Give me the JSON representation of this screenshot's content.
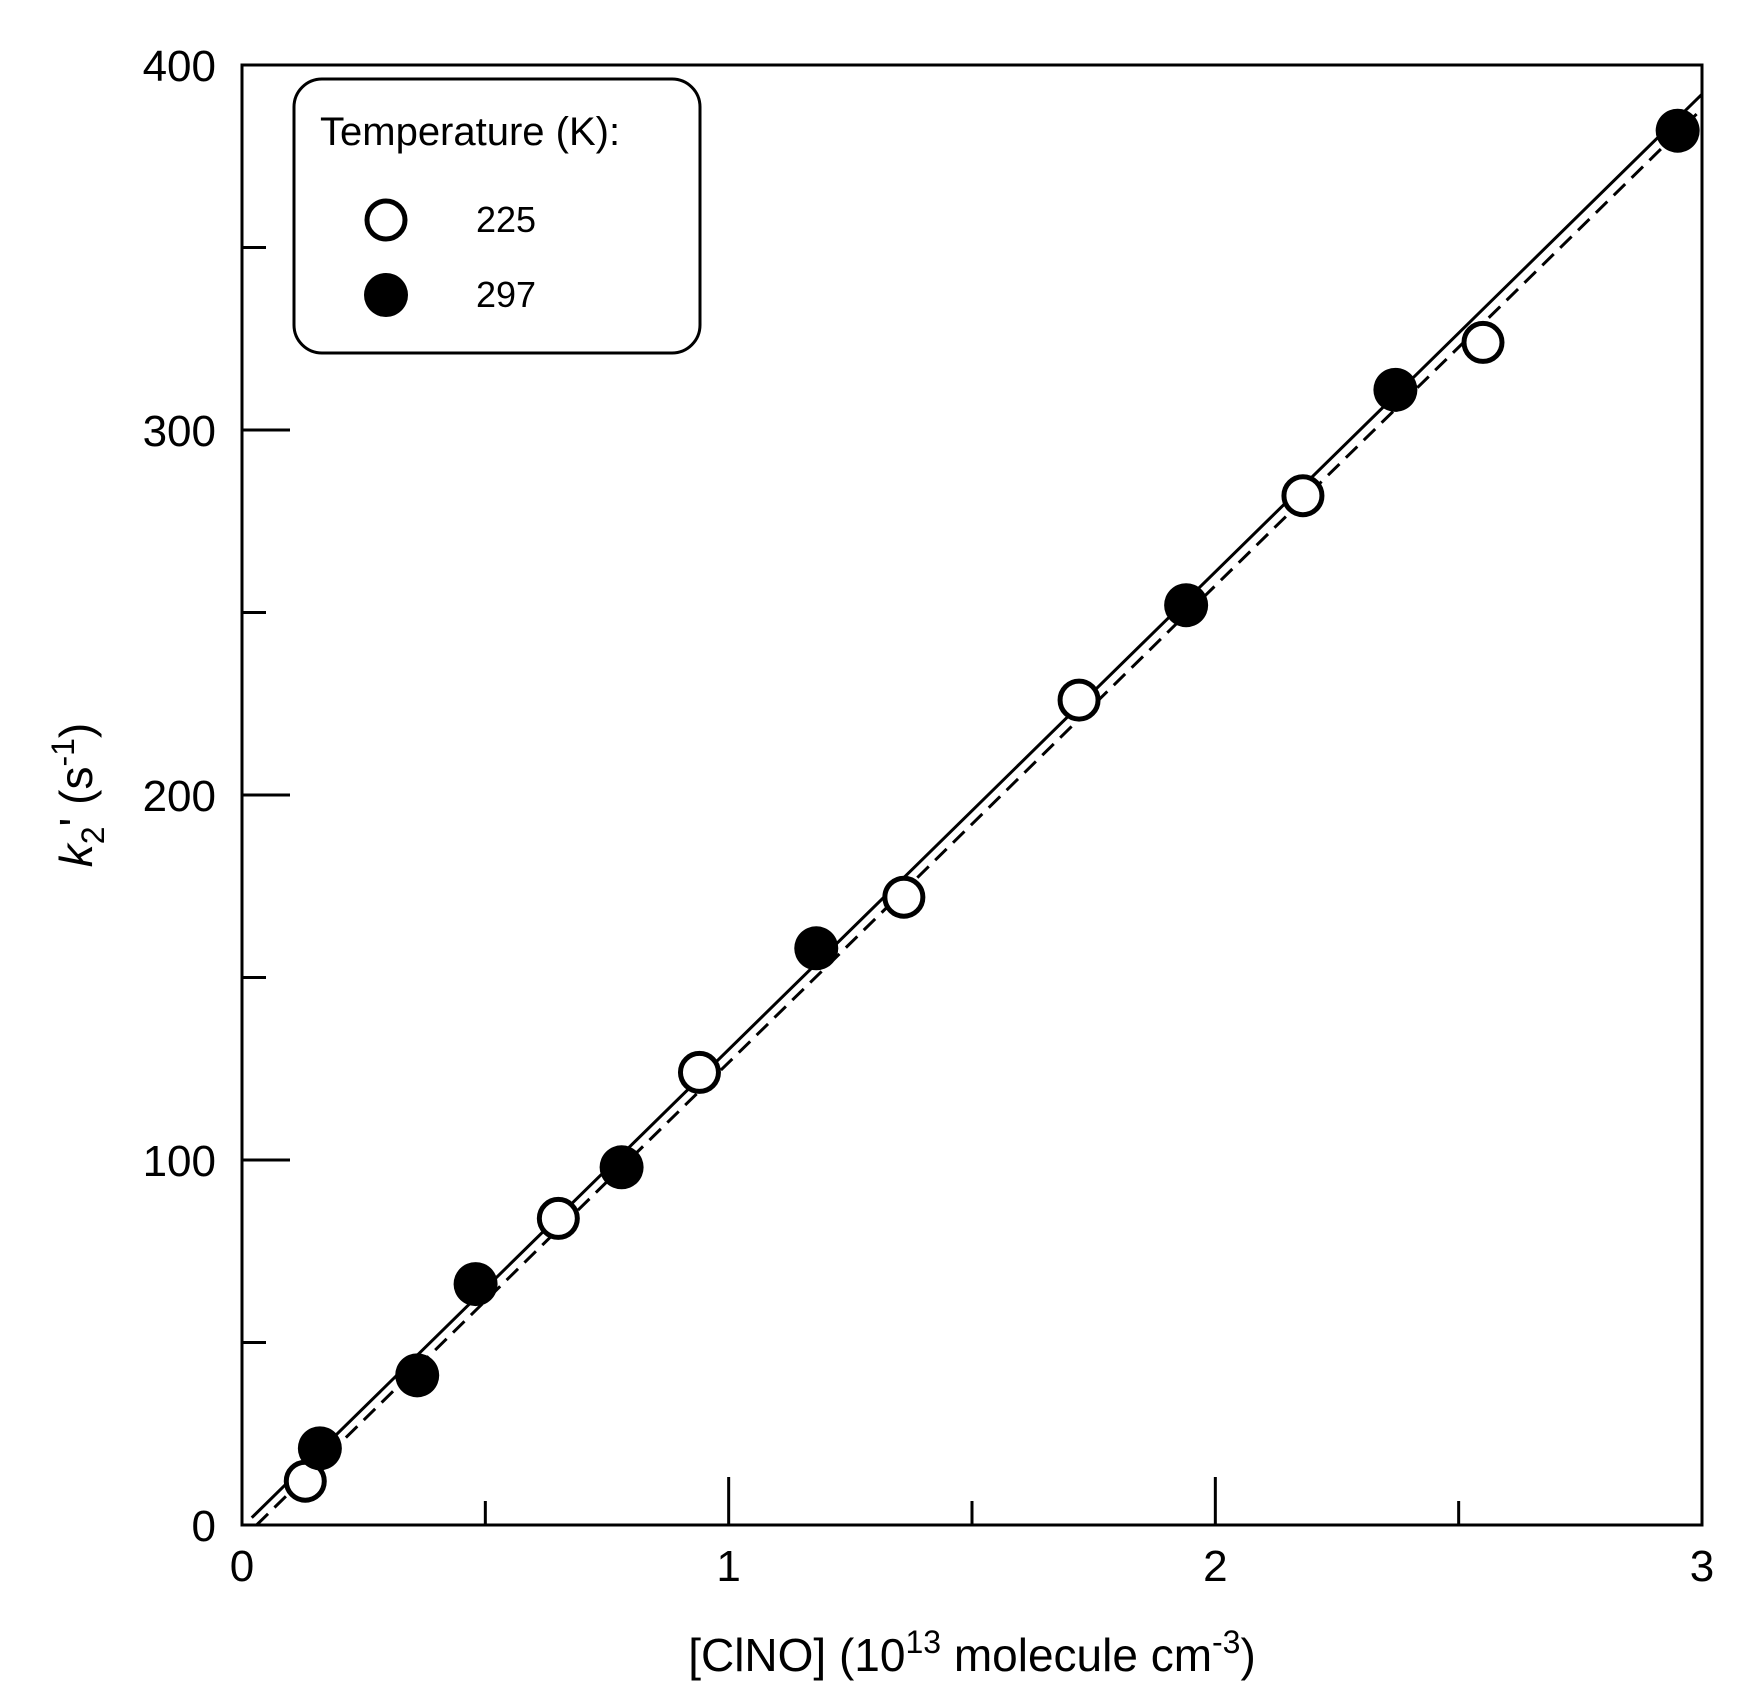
{
  "chart_data": {
    "type": "scatter",
    "title": "",
    "xlabel": {
      "prefix": "[ClNO] (10",
      "sup1": "13",
      "middle": " molecule cm",
      "sup2": "-3",
      "suffix": ")"
    },
    "ylabel": {
      "italic": "k",
      "sub": "2",
      "prime": "'",
      "middle": " (s",
      "sup": "-1",
      "suffix": ")"
    },
    "xlim": [
      0,
      3
    ],
    "ylim": [
      0,
      400
    ],
    "x_ticks": [
      "0",
      "1",
      "2",
      "3"
    ],
    "x_tick_values": [
      0,
      1,
      2,
      3
    ],
    "x_minor_ticks": [
      0.5,
      1.5,
      2.5
    ],
    "y_ticks": [
      "0",
      "100",
      "200",
      "300",
      "400"
    ],
    "y_tick_values": [
      0,
      100,
      200,
      300,
      400
    ],
    "y_minor_ticks": [
      50,
      150,
      250,
      350
    ],
    "legend": {
      "title": "Temperature (K):",
      "position": "top-left"
    },
    "series": [
      {
        "name": "225",
        "marker": "open-circle",
        "x": [
          0.13,
          0.65,
          0.94,
          1.36,
          1.72,
          2.18,
          2.55
        ],
        "y": [
          12,
          84,
          124,
          172,
          226,
          282,
          324
        ]
      },
      {
        "name": "297",
        "marker": "filled-circle",
        "x": [
          0.16,
          0.36,
          0.48,
          0.78,
          1.18,
          1.94,
          2.37,
          2.95
        ],
        "y": [
          21,
          41,
          66,
          98,
          158,
          252,
          311,
          382
        ]
      }
    ],
    "fits": [
      {
        "style": "solid",
        "x": [
          0.02,
          3.0
        ],
        "y": [
          2,
          392
        ]
      },
      {
        "style": "dashed",
        "x": [
          0.03,
          3.0
        ],
        "y": [
          0,
          388
        ]
      }
    ]
  }
}
